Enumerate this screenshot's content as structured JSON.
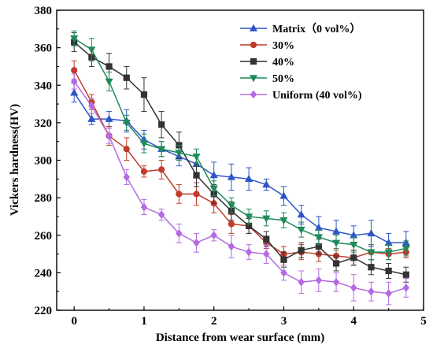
{
  "chart_data": {
    "type": "line",
    "xlabel": "Distance from wear surface (mm)",
    "ylabel": "Vickers hardness(HV)",
    "xlim": [
      -0.25,
      5
    ],
    "ylim": [
      220,
      380
    ],
    "xticks": [
      "0",
      "1",
      "2",
      "3",
      "4",
      "5"
    ],
    "yticks": [
      "220",
      "240",
      "260",
      "280",
      "300",
      "320",
      "340",
      "360",
      "380"
    ],
    "grid": false,
    "legend_position": "top-right",
    "x": [
      0,
      0.25,
      0.5,
      0.75,
      1.0,
      1.25,
      1.5,
      1.75,
      2.0,
      2.25,
      2.5,
      2.75,
      3.0,
      3.25,
      3.5,
      3.75,
      4.0,
      4.25,
      4.5,
      4.75
    ],
    "series": [
      {
        "name": "Matrix（0 vol%）",
        "color": "#2f55c8",
        "marker": "triangle-up",
        "values": [
          336,
          322,
          322,
          321,
          311,
          306,
          302,
          298,
          292,
          291,
          290,
          287,
          281,
          271,
          264,
          262,
          260,
          261,
          256,
          256
        ],
        "errors": [
          5,
          3,
          4,
          6,
          5,
          4,
          5,
          5,
          7,
          7,
          6,
          3,
          5,
          5,
          6,
          6,
          5,
          7,
          5,
          6
        ]
      },
      {
        "name": "30%",
        "color": "#c03b2b",
        "marker": "circle",
        "values": [
          348,
          331,
          313,
          306,
          294,
          295,
          282,
          282,
          277,
          266,
          265,
          256,
          250,
          251,
          250,
          249,
          248,
          251,
          250,
          251
        ],
        "errors": [
          5,
          4,
          5,
          6,
          3,
          5,
          5,
          6,
          5,
          5,
          4,
          3,
          4,
          4,
          4,
          4,
          4,
          4,
          3,
          3
        ]
      },
      {
        "name": "40%",
        "color": "#333333",
        "marker": "square",
        "values": [
          363,
          355,
          350,
          344,
          335,
          319,
          308,
          292,
          282,
          273,
          265,
          258,
          247,
          252,
          254,
          245,
          248,
          243,
          241,
          239
        ],
        "errors": [
          5,
          5,
          7,
          6,
          9,
          7,
          7,
          6,
          5,
          5,
          4,
          4,
          4,
          4,
          4,
          4,
          4,
          4,
          4,
          4
        ]
      },
      {
        "name": "50%",
        "color": "#1f8a5a",
        "marker": "triangle-down",
        "values": [
          365,
          359,
          342,
          320,
          309,
          306,
          304,
          302,
          285,
          276,
          270,
          269,
          268,
          263,
          259,
          256,
          255,
          251,
          251,
          253
        ],
        "errors": [
          4,
          6,
          5,
          4,
          5,
          4,
          4,
          4,
          4,
          4,
          4,
          4,
          4,
          4,
          4,
          4,
          4,
          4,
          4,
          4
        ]
      },
      {
        "name": "Uniform (40 vol%)",
        "color": "#b36ae2",
        "marker": "diamond",
        "values": [
          342,
          329,
          313,
          291,
          275,
          271,
          261,
          256,
          260,
          254,
          251,
          250,
          240,
          235,
          236,
          235,
          232,
          230,
          229,
          232
        ],
        "errors": [
          4,
          4,
          4,
          4,
          4,
          3,
          5,
          5,
          3,
          6,
          4,
          5,
          4,
          6,
          6,
          5,
          7,
          5,
          6,
          5
        ]
      }
    ]
  }
}
